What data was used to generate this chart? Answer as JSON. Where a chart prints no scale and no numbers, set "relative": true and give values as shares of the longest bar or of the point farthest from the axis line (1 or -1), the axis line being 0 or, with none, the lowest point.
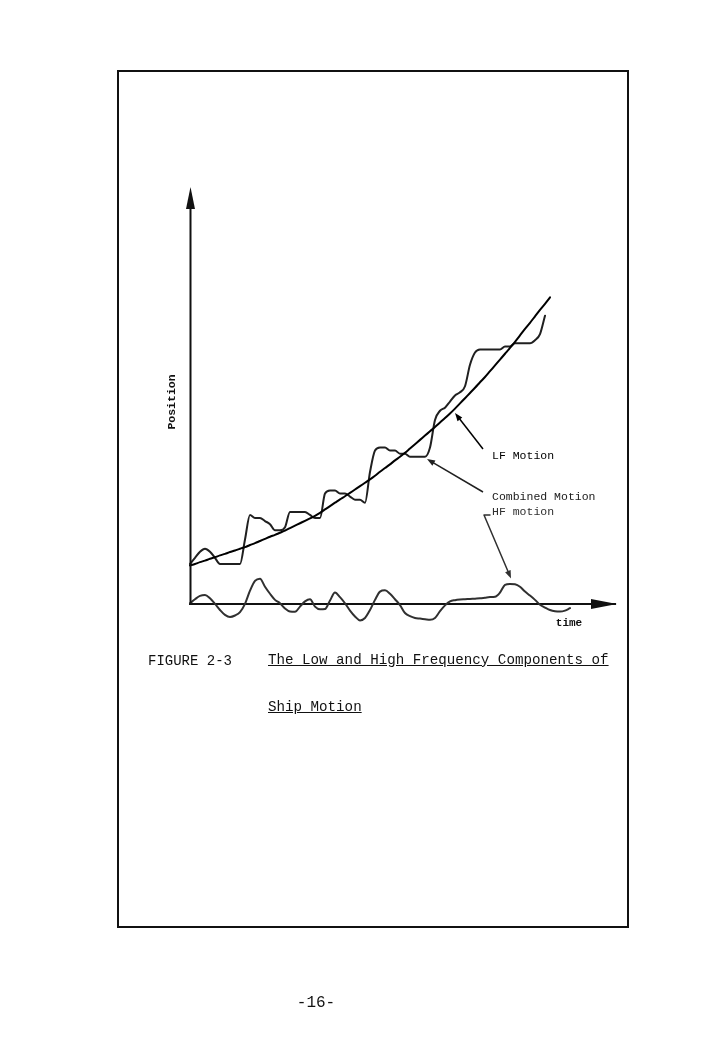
{
  "chart_data": {
    "type": "line",
    "title": "The Low and High Frequency Components of Ship Motion",
    "xlabel": "time",
    "ylabel": "Position",
    "annotations": [
      "FIGURE 2-3",
      "-16-"
    ],
    "relative": true,
    "legend": false,
    "grid": false,
    "marker": "none",
    "categories": [
      null,
      null,
      null,
      null,
      null,
      null,
      null,
      null,
      null,
      null,
      null,
      null,
      null,
      null,
      null,
      null,
      null,
      null,
      null,
      null,
      null,
      null,
      null,
      null,
      null,
      null,
      null,
      null,
      null,
      null,
      null,
      null,
      null,
      null,
      null,
      null,
      null,
      null,
      null,
      null,
      null,
      null,
      null,
      null,
      null,
      null,
      null,
      null,
      null,
      null,
      null,
      null,
      null,
      null,
      null,
      null,
      null,
      null,
      null,
      null,
      null,
      null,
      null,
      null,
      null,
      null,
      null,
      null,
      null,
      null,
      null,
      null,
      null,
      null,
      null,
      null,
      null,
      null,
      null,
      null,
      null,
      null,
      null,
      null,
      null,
      null
    ],
    "series": [
      {
        "name": "LF Motion",
        "color": "#000000",
        "values": [
          0.125,
          0.13,
          0.136,
          0.141,
          0.147,
          0.152,
          0.158,
          0.163,
          0.169,
          0.174,
          0.18,
          0.185,
          0.192,
          0.198,
          0.205,
          0.212,
          0.219,
          0.225,
          0.232,
          0.239,
          0.247,
          0.255,
          0.263,
          0.271,
          0.279,
          0.287,
          0.297,
          0.308,
          0.319,
          0.33,
          0.341,
          0.351,
          0.362,
          0.373,
          0.384,
          0.395,
          0.406,
          0.418,
          0.431,
          0.443,
          0.455,
          0.468,
          0.48,
          0.493,
          0.507,
          0.521,
          0.535,
          0.549,
          0.563,
          0.577,
          0.592,
          0.606,
          0.621,
          0.637,
          0.654,
          0.671,
          0.688,
          0.705,
          0.723,
          0.74,
          0.759,
          0.778,
          0.797,
          0.816,
          0.835,
          0.855,
          0.876,
          0.897,
          0.917,
          0.938,
          0.959,
          0.979,
          1.0,
          null,
          null,
          null,
          null,
          null,
          null,
          null,
          null,
          null,
          null,
          null,
          null,
          null
        ]
      },
      {
        "name": "Combined Motion",
        "color": "#202020",
        "values": [
          0.13,
          0.15,
          0.17,
          0.18,
          0.17,
          0.15,
          0.13,
          0.13,
          0.13,
          0.13,
          0.13,
          0.21,
          0.29,
          0.28,
          0.28,
          0.27,
          0.26,
          0.24,
          0.24,
          0.25,
          0.3,
          0.3,
          0.3,
          0.3,
          0.29,
          0.28,
          0.28,
          0.36,
          0.37,
          0.37,
          0.36,
          0.36,
          0.35,
          0.34,
          0.34,
          0.33,
          0.43,
          0.5,
          0.51,
          0.51,
          0.5,
          0.5,
          0.49,
          0.49,
          0.48,
          0.48,
          0.48,
          0.48,
          0.51,
          0.6,
          0.63,
          0.64,
          0.66,
          0.68,
          0.69,
          0.71,
          0.78,
          0.82,
          0.83,
          0.83,
          0.83,
          0.83,
          0.83,
          0.84,
          0.84,
          0.85,
          0.85,
          0.85,
          0.85,
          0.86,
          0.88,
          0.94,
          null,
          null,
          null,
          null,
          null,
          null,
          null,
          null,
          null,
          null,
          null,
          null,
          null,
          null
        ]
      },
      {
        "name": "HF motion",
        "color": "#303030",
        "values": [
          0.002,
          0.015,
          0.026,
          0.029,
          0.018,
          0,
          -0.02,
          -0.036,
          -0.043,
          -0.038,
          -0.027,
          0,
          0.043,
          0.075,
          0.082,
          0.056,
          0.033,
          0.013,
          0.002,
          -0.015,
          -0.025,
          -0.026,
          -0.009,
          0.008,
          0.015,
          -0.009,
          -0.018,
          -0.017,
          0.011,
          0.037,
          0.022,
          0.002,
          -0.022,
          -0.041,
          -0.054,
          -0.046,
          -0.02,
          0.013,
          0.04,
          0.044,
          0.033,
          0.015,
          -0.004,
          -0.03,
          -0.04,
          -0.046,
          -0.048,
          -0.05,
          -0.052,
          -0.046,
          -0.024,
          -0.005,
          0.008,
          0.012,
          0.014,
          0.015,
          0.016,
          0.017,
          0.018,
          0.02,
          0.022,
          0.023,
          0.037,
          0.062,
          0.065,
          0.064,
          0.056,
          0.04,
          0.027,
          0.013,
          -0.003,
          -0.012,
          -0.02,
          -0.024,
          -0.025,
          -0.022,
          -0.014,
          null,
          null,
          null,
          null,
          null,
          null,
          null,
          null,
          null
        ]
      }
    ]
  }
}
